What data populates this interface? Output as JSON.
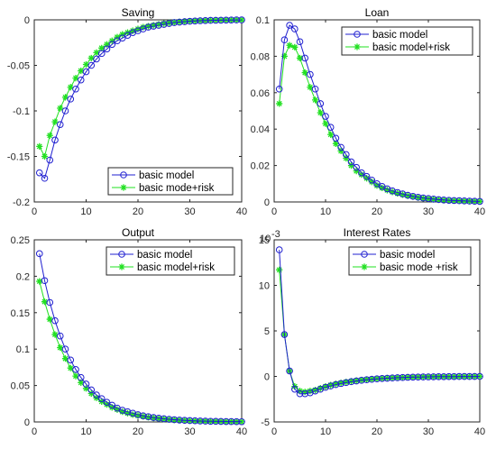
{
  "colors": {
    "basic": "#2020d0",
    "risk": "#22e022"
  },
  "chart_data": [
    {
      "type": "line",
      "title": "Saving",
      "xlim": [
        0,
        40
      ],
      "ylim": [
        -0.2,
        0
      ],
      "xticks": [
        "0",
        "10",
        "20",
        "30",
        "40"
      ],
      "yticks": [
        "-0.2",
        "-0.15",
        "-0.1",
        "-0.05",
        "0"
      ],
      "ytick_values": [
        -0.2,
        -0.15,
        -0.1,
        -0.05,
        0
      ],
      "legend_position": "bottom-right",
      "x": [
        1,
        2,
        3,
        4,
        5,
        6,
        7,
        8,
        9,
        10,
        11,
        12,
        13,
        14,
        15,
        16,
        17,
        18,
        19,
        20,
        21,
        22,
        23,
        24,
        25,
        26,
        27,
        28,
        29,
        30,
        31,
        32,
        33,
        34,
        35,
        36,
        37,
        38,
        39,
        40
      ],
      "series": [
        {
          "name": "basic model",
          "color_key": "basic",
          "marker": "circle",
          "values": [
            -0.168,
            -0.174,
            -0.154,
            -0.132,
            -0.115,
            -0.1,
            -0.087,
            -0.076,
            -0.066,
            -0.057,
            -0.05,
            -0.043,
            -0.037,
            -0.032,
            -0.027,
            -0.023,
            -0.02,
            -0.017,
            -0.014,
            -0.012,
            -0.01,
            -0.008,
            -0.007,
            -0.006,
            -0.005,
            -0.004,
            -0.003,
            -0.0025,
            -0.002,
            -0.0016,
            -0.0013,
            -0.001,
            -0.0008,
            -0.0006,
            -0.0005,
            -0.0004,
            -0.0003,
            -0.0002,
            -0.0001,
            -0.0001
          ]
        },
        {
          "name": "basic mode+risk",
          "color_key": "risk",
          "marker": "star",
          "values": [
            -0.139,
            -0.15,
            -0.127,
            -0.112,
            -0.097,
            -0.085,
            -0.074,
            -0.064,
            -0.056,
            -0.049,
            -0.042,
            -0.036,
            -0.031,
            -0.027,
            -0.023,
            -0.019,
            -0.016,
            -0.014,
            -0.012,
            -0.01,
            -0.008,
            -0.007,
            -0.006,
            -0.005,
            -0.004,
            -0.0033,
            -0.0027,
            -0.0022,
            -0.0018,
            -0.0014,
            -0.0011,
            -0.0009,
            -0.0007,
            -0.0005,
            -0.0004,
            -0.0003,
            -0.0002,
            -0.0002,
            -0.0001,
            -0.0001
          ]
        }
      ]
    },
    {
      "type": "line",
      "title": "Loan",
      "xlim": [
        0,
        40
      ],
      "ylim": [
        0,
        0.1
      ],
      "xticks": [
        "0",
        "10",
        "20",
        "30",
        "40"
      ],
      "yticks": [
        "0",
        "0.02",
        "0.04",
        "0.06",
        "0.08",
        "0.1"
      ],
      "ytick_values": [
        0,
        0.02,
        0.04,
        0.06,
        0.08,
        0.1
      ],
      "legend_position": "top-right",
      "x": [
        1,
        2,
        3,
        4,
        5,
        6,
        7,
        8,
        9,
        10,
        11,
        12,
        13,
        14,
        15,
        16,
        17,
        18,
        19,
        20,
        21,
        22,
        23,
        24,
        25,
        26,
        27,
        28,
        29,
        30,
        31,
        32,
        33,
        34,
        35,
        36,
        37,
        38,
        39,
        40
      ],
      "series": [
        {
          "name": "basic model",
          "color_key": "basic",
          "marker": "circle",
          "values": [
            0.062,
            0.089,
            0.097,
            0.095,
            0.088,
            0.079,
            0.07,
            0.062,
            0.054,
            0.047,
            0.041,
            0.035,
            0.03,
            0.026,
            0.022,
            0.019,
            0.016,
            0.014,
            0.012,
            0.01,
            0.0085,
            0.0072,
            0.0061,
            0.0052,
            0.0044,
            0.0037,
            0.0031,
            0.0026,
            0.0022,
            0.0019,
            0.0016,
            0.0013,
            0.0011,
            0.0009,
            0.0008,
            0.0007,
            0.0006,
            0.0005,
            0.0004,
            0.0003
          ]
        },
        {
          "name": "basic model+risk",
          "color_key": "risk",
          "marker": "star",
          "values": [
            0.054,
            0.08,
            0.086,
            0.085,
            0.079,
            0.071,
            0.063,
            0.056,
            0.049,
            0.043,
            0.037,
            0.032,
            0.028,
            0.024,
            0.02,
            0.017,
            0.015,
            0.013,
            0.011,
            0.009,
            0.0077,
            0.0065,
            0.0055,
            0.0047,
            0.004,
            0.0034,
            0.0029,
            0.0024,
            0.002,
            0.0017,
            0.0014,
            0.0012,
            0.001,
            0.0008,
            0.0007,
            0.0006,
            0.0005,
            0.0004,
            0.0003,
            0.0003
          ]
        }
      ]
    },
    {
      "type": "line",
      "title": "Output",
      "xlim": [
        0,
        40
      ],
      "ylim": [
        0,
        0.25
      ],
      "xticks": [
        "0",
        "10",
        "20",
        "30",
        "40"
      ],
      "yticks": [
        "0",
        "0.05",
        "0.1",
        "0.15",
        "0.2",
        "0.25"
      ],
      "ytick_values": [
        0,
        0.05,
        0.1,
        0.15,
        0.2,
        0.25
      ],
      "legend_position": "top-right",
      "x": [
        1,
        2,
        3,
        4,
        5,
        6,
        7,
        8,
        9,
        10,
        11,
        12,
        13,
        14,
        15,
        16,
        17,
        18,
        19,
        20,
        21,
        22,
        23,
        24,
        25,
        26,
        27,
        28,
        29,
        30,
        31,
        32,
        33,
        34,
        35,
        36,
        37,
        38,
        39,
        40
      ],
      "series": [
        {
          "name": "basic model",
          "color_key": "basic",
          "marker": "circle",
          "values": [
            0.231,
            0.194,
            0.164,
            0.139,
            0.118,
            0.1,
            0.085,
            0.072,
            0.061,
            0.052,
            0.044,
            0.037,
            0.032,
            0.027,
            0.023,
            0.019,
            0.016,
            0.014,
            0.012,
            0.01,
            0.0085,
            0.0072,
            0.0061,
            0.0052,
            0.0044,
            0.0037,
            0.0031,
            0.0026,
            0.0022,
            0.0019,
            0.0016,
            0.0013,
            0.0011,
            0.0009,
            0.0008,
            0.0007,
            0.0006,
            0.0005,
            0.0004,
            0.0003
          ]
        },
        {
          "name": "basic model+risk",
          "color_key": "risk",
          "marker": "star",
          "values": [
            0.193,
            0.165,
            0.141,
            0.12,
            0.102,
            0.087,
            0.074,
            0.063,
            0.054,
            0.046,
            0.039,
            0.033,
            0.028,
            0.024,
            0.02,
            0.017,
            0.014,
            0.012,
            0.01,
            0.0088,
            0.0075,
            0.0064,
            0.0054,
            0.0046,
            0.0039,
            0.0033,
            0.0028,
            0.0024,
            0.002,
            0.0017,
            0.0014,
            0.0012,
            0.001,
            0.0008,
            0.0007,
            0.0006,
            0.0005,
            0.0004,
            0.0003,
            0.0003
          ]
        }
      ]
    },
    {
      "type": "line",
      "title": "Interest Rates",
      "exponent_label": "10",
      "exponent_power": "-3",
      "xlim": [
        0,
        40
      ],
      "ylim": [
        -5,
        15
      ],
      "xticks": [
        "0",
        "10",
        "20",
        "30",
        "40"
      ],
      "yticks": [
        "-5",
        "0",
        "5",
        "10",
        "15"
      ],
      "ytick_values": [
        -5,
        0,
        5,
        10,
        15
      ],
      "legend_position": "top-right",
      "x": [
        1,
        2,
        3,
        4,
        5,
        6,
        7,
        8,
        9,
        10,
        11,
        12,
        13,
        14,
        15,
        16,
        17,
        18,
        19,
        20,
        21,
        22,
        23,
        24,
        25,
        26,
        27,
        28,
        29,
        30,
        31,
        32,
        33,
        34,
        35,
        36,
        37,
        38,
        39,
        40
      ],
      "series": [
        {
          "name": "basic model",
          "color_key": "basic",
          "marker": "circle",
          "values": [
            13.9,
            4.6,
            0.6,
            -1.4,
            -1.9,
            -1.9,
            -1.8,
            -1.6,
            -1.4,
            -1.2,
            -1.05,
            -0.9,
            -0.78,
            -0.68,
            -0.58,
            -0.5,
            -0.43,
            -0.37,
            -0.32,
            -0.27,
            -0.23,
            -0.2,
            -0.17,
            -0.14,
            -0.12,
            -0.1,
            -0.08,
            -0.07,
            -0.06,
            -0.05,
            -0.04,
            -0.03,
            -0.03,
            -0.02,
            -0.02,
            -0.01,
            -0.01,
            -0.01,
            -0.01,
            0.0
          ]
        },
        {
          "name": "basic mode +risk",
          "color_key": "risk",
          "marker": "star",
          "values": [
            11.7,
            4.6,
            0.6,
            -1.1,
            -1.6,
            -1.7,
            -1.6,
            -1.5,
            -1.3,
            -1.1,
            -0.95,
            -0.82,
            -0.71,
            -0.61,
            -0.53,
            -0.46,
            -0.39,
            -0.34,
            -0.29,
            -0.25,
            -0.21,
            -0.18,
            -0.15,
            -0.13,
            -0.11,
            -0.09,
            -0.08,
            -0.06,
            -0.05,
            -0.04,
            -0.04,
            -0.03,
            -0.02,
            -0.02,
            -0.02,
            -0.01,
            -0.01,
            -0.01,
            0.0,
            0.0
          ]
        }
      ]
    }
  ]
}
